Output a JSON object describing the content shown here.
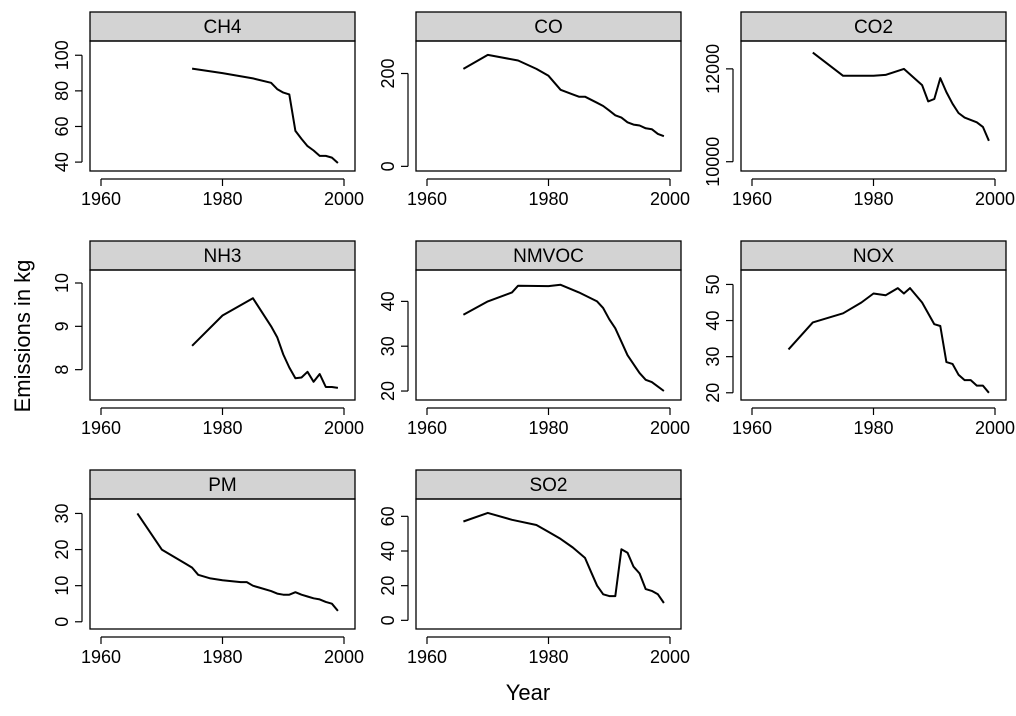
{
  "chart_data": {
    "type": "line",
    "layout": "faceted",
    "xlabel": "Year",
    "ylabel": "Emissions in kg",
    "grid": false,
    "panels": [
      {
        "name": "CH4",
        "xlim": [
          1960,
          2000
        ],
        "xticks": [
          1960,
          1980,
          2000
        ],
        "ylim": [
          35,
          108
        ],
        "yticks": [
          40,
          60,
          80,
          100
        ],
        "x": [
          1975,
          1980,
          1985,
          1988,
          1989,
          1990,
          1991,
          1992,
          1993,
          1994,
          1995,
          1996,
          1997,
          1998,
          1999
        ],
        "y": [
          92.5,
          90,
          87,
          84.5,
          81,
          79,
          78,
          57.5,
          53,
          49,
          46.5,
          43.5,
          43.5,
          42.5,
          39.5
        ]
      },
      {
        "name": "CO",
        "xlim": [
          1960,
          2000
        ],
        "xticks": [
          1960,
          1980,
          2000
        ],
        "ylim": [
          -10,
          270
        ],
        "yticks": [
          0,
          200
        ],
        "x": [
          1966,
          1970,
          1975,
          1978,
          1980,
          1982,
          1984,
          1985,
          1986,
          1988,
          1989,
          1990,
          1991,
          1992,
          1993,
          1994,
          1995,
          1996,
          1997,
          1998,
          1999
        ],
        "y": [
          210,
          240,
          228,
          210,
          195,
          165,
          155,
          150,
          150,
          137,
          130,
          120,
          110,
          105,
          95,
          90,
          88,
          82,
          80,
          70,
          65
        ]
      },
      {
        "name": "CO2",
        "xlim": [
          1960,
          2000
        ],
        "xticks": [
          1960,
          1980,
          2000
        ],
        "ylim": [
          9800,
          12600
        ],
        "yticks": [
          10000,
          12000
        ],
        "x": [
          1970,
          1975,
          1980,
          1982,
          1985,
          1988,
          1989,
          1990,
          1991,
          1992,
          1993,
          1994,
          1995,
          1996,
          1997,
          1998,
          1999
        ],
        "y": [
          12350,
          11850,
          11850,
          11870,
          12000,
          11650,
          11300,
          11350,
          11800,
          11500,
          11250,
          11050,
          10950,
          10900,
          10850,
          10750,
          10450
        ]
      },
      {
        "name": "NH3",
        "xlim": [
          1960,
          2000
        ],
        "xticks": [
          1960,
          1980,
          2000
        ],
        "ylim": [
          7.3,
          10.3
        ],
        "yticks": [
          8,
          9,
          10
        ],
        "x": [
          1975,
          1980,
          1985,
          1988,
          1989,
          1990,
          1991,
          1992,
          1993,
          1994,
          1995,
          1996,
          1997,
          1998,
          1999
        ],
        "y": [
          8.55,
          9.25,
          9.65,
          9.0,
          8.75,
          8.35,
          8.05,
          7.8,
          7.82,
          7.95,
          7.72,
          7.9,
          7.6,
          7.6,
          7.58
        ]
      },
      {
        "name": "NMVOC",
        "xlim": [
          1960,
          2000
        ],
        "xticks": [
          1960,
          1980,
          2000
        ],
        "ylim": [
          18,
          47
        ],
        "yticks": [
          20,
          30,
          40
        ],
        "x": [
          1966,
          1970,
          1974,
          1975,
          1980,
          1982,
          1985,
          1988,
          1989,
          1990,
          1991,
          1992,
          1993,
          1994,
          1995,
          1996,
          1997,
          1998,
          1999
        ],
        "y": [
          37,
          40,
          42,
          43.5,
          43.4,
          43.7,
          42,
          40,
          38.5,
          36,
          34,
          31,
          28,
          26,
          24,
          22.5,
          22,
          21,
          20
        ]
      },
      {
        "name": "NOX",
        "xlim": [
          1960,
          2000
        ],
        "xticks": [
          1960,
          1980,
          2000
        ],
        "ylim": [
          18,
          54
        ],
        "yticks": [
          20,
          30,
          40,
          50
        ],
        "x": [
          1966,
          1970,
          1975,
          1978,
          1980,
          1982,
          1984,
          1985,
          1986,
          1988,
          1990,
          1991,
          1992,
          1993,
          1994,
          1995,
          1996,
          1997,
          1998,
          1999
        ],
        "y": [
          32,
          39.5,
          42,
          45,
          47.5,
          47,
          49,
          47.5,
          49,
          45,
          39,
          38.5,
          28.5,
          28,
          25,
          23.5,
          23.5,
          22,
          22,
          20
        ]
      },
      {
        "name": "PM",
        "xlim": [
          1960,
          2000
        ],
        "xticks": [
          1960,
          1980,
          2000
        ],
        "ylim": [
          -2,
          34
        ],
        "yticks": [
          0,
          10,
          20,
          30
        ],
        "x": [
          1966,
          1970,
          1974,
          1975,
          1976,
          1978,
          1980,
          1983,
          1984,
          1985,
          1986,
          1988,
          1989,
          1990,
          1991,
          1992,
          1993,
          1994,
          1995,
          1996,
          1997,
          1998,
          1999
        ],
        "y": [
          30,
          20,
          16,
          15,
          13,
          12,
          11.5,
          11,
          11,
          10,
          9.5,
          8.5,
          7.8,
          7.5,
          7.5,
          8.2,
          7.5,
          7,
          6.5,
          6.2,
          5.5,
          5,
          3
        ]
      },
      {
        "name": "SO2",
        "xlim": [
          1960,
          2000
        ],
        "xticks": [
          1960,
          1980,
          2000
        ],
        "ylim": [
          -5,
          70
        ],
        "yticks": [
          0,
          20,
          40,
          60
        ],
        "x": [
          1966,
          1970,
          1974,
          1978,
          1980,
          1982,
          1984,
          1986,
          1987,
          1988,
          1989,
          1990,
          1991,
          1992,
          1993,
          1994,
          1995,
          1996,
          1997,
          1998,
          1999
        ],
        "y": [
          57,
          62,
          58,
          55,
          51,
          47,
          42,
          36,
          28,
          20,
          15,
          14,
          14,
          41,
          39,
          31,
          27,
          18,
          17,
          15,
          10
        ]
      }
    ]
  }
}
